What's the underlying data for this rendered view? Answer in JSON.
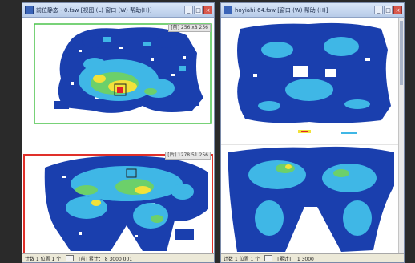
{
  "windows": {
    "left": {
      "title": "前位静态 - 0.fsw [视图 (L) 窗口 (W) 帮助(H)]",
      "top_panel_label": "[前]  256 x8  256",
      "bottom_panel_label": "[后]  1278  51  256",
      "status": {
        "text1": "计数  1  位置  1  个",
        "text2": "[前]  累计：  8  3000  001"
      }
    },
    "right": {
      "title": "hoyiahi-64.fsw [窗口 (W) 帮助 (H)]",
      "status": {
        "text1": "计数  1  位置  1  个",
        "text2": "[累计]：  1  3000"
      }
    }
  },
  "colors": {
    "green_frame": "#4cc44c",
    "red_frame": "#e0302a",
    "heat_low": "#1a3fae",
    "heat_mid": "#3fb7e6",
    "heat_high": "#f2e23a",
    "heat_peak": "#e0202a"
  },
  "icons": {
    "app": "app-icon",
    "minimize": "minimize-icon",
    "maximize": "maximize-icon",
    "close": "close-icon"
  }
}
